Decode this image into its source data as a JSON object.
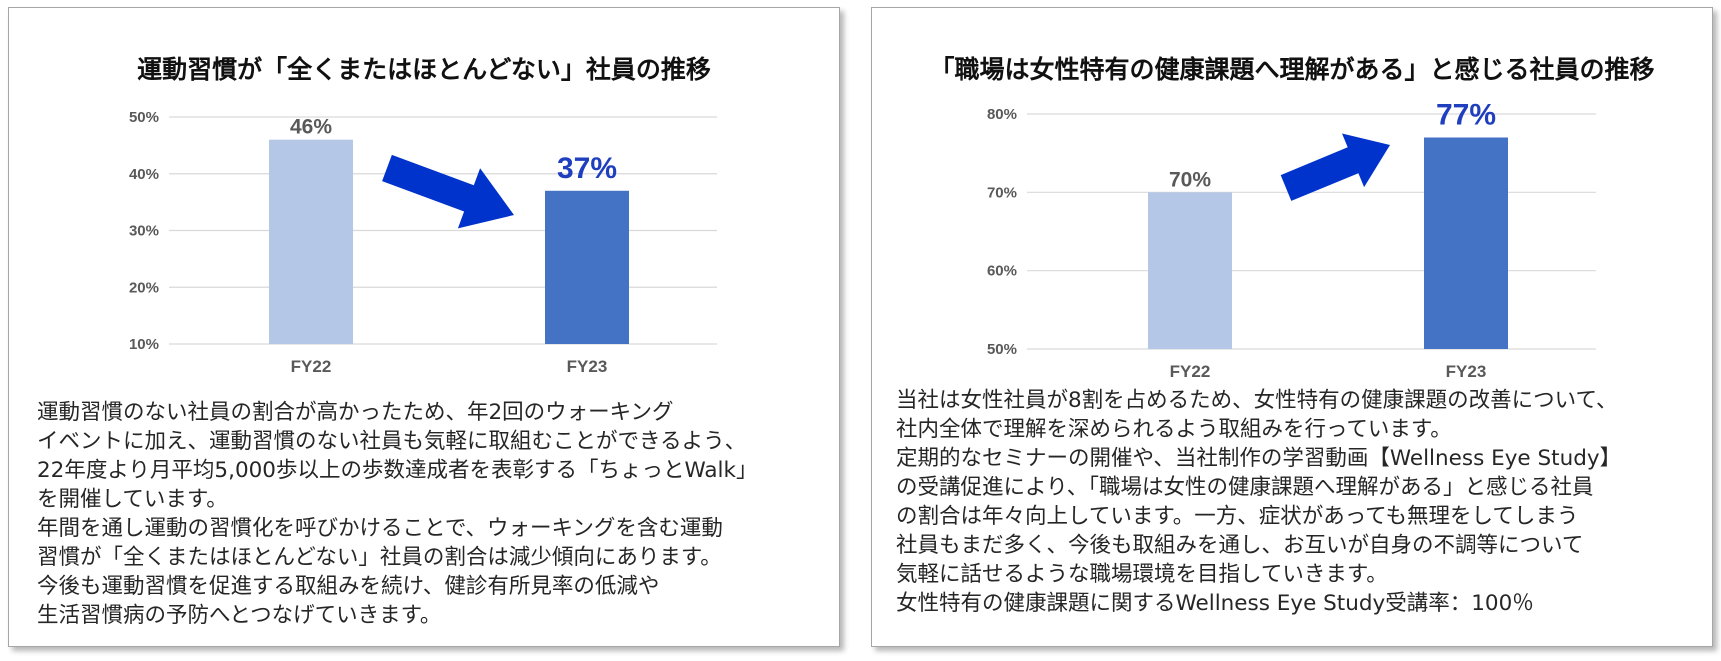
{
  "colors": {
    "fy22_bar": "#b4c7e7",
    "fy23_bar": "#4472c4",
    "arrow": "#0033cc",
    "highlight_label": "#1f3fbf",
    "gridline": "#d9d9d9"
  },
  "left_panel": {
    "title": "運動習慣が「全くまたはほとんどない」社員の推移",
    "description": [
      "運動習慣のない社員の割合が高かったため、年2回のウォーキング",
      "イベントに加え、運動習慣のない社員も気軽に取組むことができるよう、",
      "22年度より月平均5,000歩以上の歩数達成者を表彰する「ちょっとWalk」",
      "を開催しています。",
      "年間を通し運動の習慣化を呼びかけることで、ウォーキングを含む運動",
      "習慣が「全くまたはほとんどない」社員の割合は減少傾向にあります。",
      "今後も運動習慣を促進する取組みを続け、健診有所見率の低減や",
      "生活習慣病の予防へとつなげていきます。"
    ]
  },
  "right_panel": {
    "title": "「職場は女性特有の健康課題へ理解がある」と感じる社員の推移",
    "description": [
      "当社は女性社員が8割を占めるため、女性特有の健康課題の改善について、",
      "社内全体で理解を深められるよう取組みを行っています。",
      "定期的なセミナーの開催や、当社制作の学習動画【Wellness Eye Study】",
      "の受講促進により、「職場は女性の健康課題へ理解がある」と感じる社員",
      "の割合は年々向上しています。一方、症状があっても無理をしてしまう",
      "社員もまだ多く、今後も取組みを通し、お互いが自身の不調等について",
      "気軽に話せるような職場環境を目指していきます。",
      "女性特有の健康課題に関するWellness Eye Study受講率：100％"
    ]
  },
  "chart_data": [
    {
      "type": "bar",
      "categories": [
        "FY22",
        "FY23"
      ],
      "values": [
        46,
        37
      ],
      "value_labels": [
        "46%",
        "37%"
      ],
      "y_ticks": [
        "10%",
        "20%",
        "30%",
        "40%",
        "50%"
      ],
      "ylim": [
        10,
        50
      ],
      "grid": true,
      "trend_arrow": "down"
    },
    {
      "type": "bar",
      "categories": [
        "FY22",
        "FY23"
      ],
      "values": [
        70,
        77
      ],
      "value_labels": [
        "70%",
        "77%"
      ],
      "y_ticks": [
        "50%",
        "60%",
        "70%",
        "80%"
      ],
      "ylim": [
        50,
        80
      ],
      "grid": true,
      "trend_arrow": "up"
    }
  ]
}
